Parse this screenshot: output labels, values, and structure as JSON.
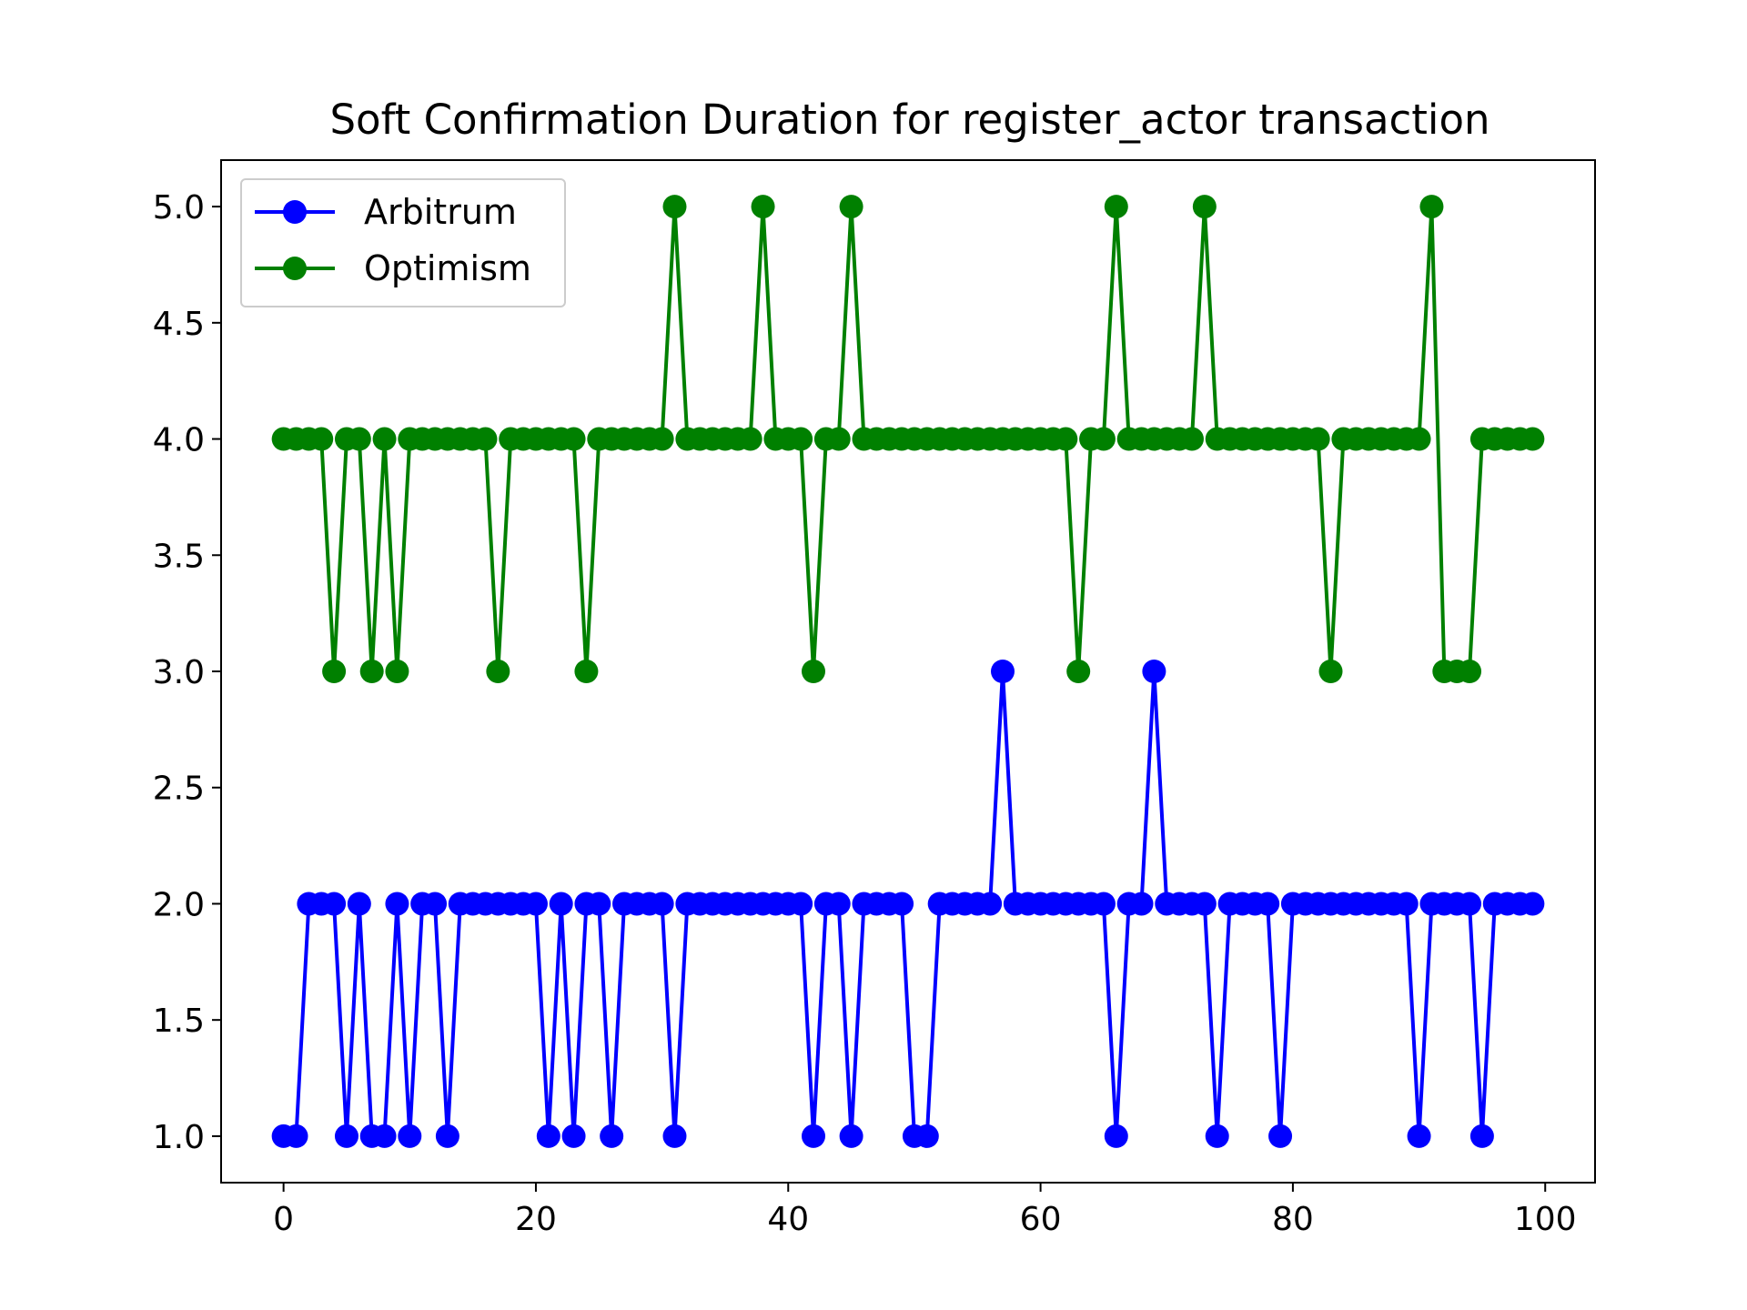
{
  "chart_data": {
    "type": "line",
    "title": "Soft Confirmation Duration for register_actor transaction",
    "xlabel": "",
    "ylabel": "",
    "xlim": [
      -4.95,
      103.95
    ],
    "ylim": [
      0.8,
      5.2
    ],
    "x_ticks": [
      0,
      20,
      40,
      60,
      80,
      100
    ],
    "y_ticks": [
      1.0,
      1.5,
      2.0,
      2.5,
      3.0,
      3.5,
      4.0,
      4.5,
      5.0
    ],
    "y_tick_labels": [
      "1.0",
      "1.5",
      "2.0",
      "2.5",
      "3.0",
      "3.5",
      "4.0",
      "4.5",
      "5.0"
    ],
    "x_tick_labels": [
      "0",
      "20",
      "40",
      "60",
      "80",
      "100"
    ],
    "grid": false,
    "legend_position": "top-left",
    "x": [
      0,
      1,
      2,
      3,
      4,
      5,
      6,
      7,
      8,
      9,
      10,
      11,
      12,
      13,
      14,
      15,
      16,
      17,
      18,
      19,
      20,
      21,
      22,
      23,
      24,
      25,
      26,
      27,
      28,
      29,
      30,
      31,
      32,
      33,
      34,
      35,
      36,
      37,
      38,
      39,
      40,
      41,
      42,
      43,
      44,
      45,
      46,
      47,
      48,
      49,
      50,
      51,
      52,
      53,
      54,
      55,
      56,
      57,
      58,
      59,
      60,
      61,
      62,
      63,
      64,
      65,
      66,
      67,
      68,
      69,
      70,
      71,
      72,
      73,
      74,
      75,
      76,
      77,
      78,
      79,
      80,
      81,
      82,
      83,
      84,
      85,
      86,
      87,
      88,
      89,
      90,
      91,
      92,
      93,
      94,
      95,
      96,
      97,
      98,
      99
    ],
    "series": [
      {
        "name": "Arbitrum",
        "color": "#0000ff",
        "values": [
          1,
          1,
          2,
          2,
          2,
          1,
          2,
          1,
          1,
          2,
          1,
          2,
          2,
          1,
          2,
          2,
          2,
          2,
          2,
          2,
          2,
          1,
          2,
          1,
          2,
          2,
          1,
          2,
          2,
          2,
          2,
          1,
          2,
          2,
          2,
          2,
          2,
          2,
          2,
          2,
          2,
          2,
          1,
          2,
          2,
          1,
          2,
          2,
          2,
          2,
          1,
          1,
          2,
          2,
          2,
          2,
          2,
          3,
          2,
          2,
          2,
          2,
          2,
          2,
          2,
          2,
          1,
          2,
          2,
          3,
          2,
          2,
          2,
          2,
          1,
          2,
          2,
          2,
          2,
          1,
          2,
          2,
          2,
          2,
          2,
          2,
          2,
          2,
          2,
          2,
          1,
          2,
          2,
          2,
          2,
          1,
          2,
          2,
          2,
          2
        ]
      },
      {
        "name": "Optimism",
        "color": "#008000",
        "values": [
          4,
          4,
          4,
          4,
          3,
          4,
          4,
          3,
          4,
          3,
          4,
          4,
          4,
          4,
          4,
          4,
          4,
          3,
          4,
          4,
          4,
          4,
          4,
          4,
          3,
          4,
          4,
          4,
          4,
          4,
          4,
          5,
          4,
          4,
          4,
          4,
          4,
          4,
          5,
          4,
          4,
          4,
          3,
          4,
          4,
          5,
          4,
          4,
          4,
          4,
          4,
          4,
          4,
          4,
          4,
          4,
          4,
          4,
          4,
          4,
          4,
          4,
          4,
          3,
          4,
          4,
          5,
          4,
          4,
          4,
          4,
          4,
          4,
          5,
          4,
          4,
          4,
          4,
          4,
          4,
          4,
          4,
          4,
          3,
          4,
          4,
          4,
          4,
          4,
          4,
          4,
          5,
          3,
          3,
          3,
          4,
          4,
          4,
          4,
          4
        ]
      }
    ]
  }
}
